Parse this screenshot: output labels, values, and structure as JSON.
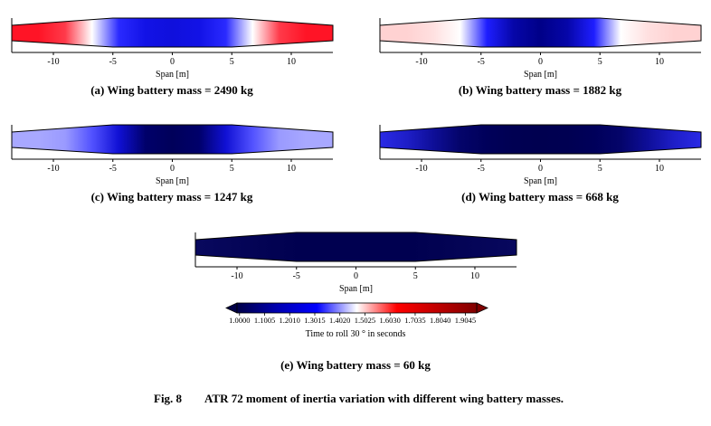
{
  "figure": {
    "panels": [
      {
        "caption": "(a) Wing battery mass = 2490 kg",
        "xlabel": "Span [m]",
        "xlim": [
          -13.5,
          13.5
        ],
        "xticks": [
          -10,
          -5,
          0,
          5,
          10
        ],
        "span_colors": [
          "#ff1426",
          "#ff1426",
          "#ff3a4a",
          "#ffffff",
          "#2a2aff",
          "#1212e6",
          "#1010dc",
          "#1212e6",
          "#2a2aff",
          "#ffffff",
          "#ff3a4a",
          "#ff1426",
          "#ff1426"
        ]
      },
      {
        "caption": "(b) Wing battery mass = 1882 kg",
        "xlabel": "Span [m]",
        "xlim": [
          -13.5,
          13.5
        ],
        "xticks": [
          -10,
          -5,
          0,
          5,
          10
        ],
        "span_colors": [
          "#ffd2d2",
          "#ffd2d2",
          "#ffe0e0",
          "#ffffff",
          "#1e1eff",
          "#0606a8",
          "#000088",
          "#0606a8",
          "#1e1eff",
          "#ffffff",
          "#ffe0e0",
          "#ffd2d2",
          "#ffd2d2"
        ]
      },
      {
        "caption": "(c) Wing battery mass = 1247 kg",
        "xlabel": "Span [m]",
        "xlim": [
          -13.5,
          13.5
        ],
        "xticks": [
          -10,
          -5,
          0,
          5,
          10
        ],
        "span_colors": [
          "#a8a8ff",
          "#a8a8ff",
          "#9a9aff",
          "#5252ff",
          "#1010d4",
          "#00006a",
          "#00005a",
          "#00006a",
          "#1010d4",
          "#5252ff",
          "#9a9aff",
          "#a8a8ff",
          "#a8a8ff"
        ]
      },
      {
        "caption": "(d) Wing battery mass = 668 kg",
        "xlabel": "Span [m]",
        "xlim": [
          -13.5,
          13.5
        ],
        "xticks": [
          -10,
          -5,
          0,
          5,
          10
        ],
        "span_colors": [
          "#2a2ae6",
          "#1e1ec8",
          "#0e0e98",
          "#04046a",
          "#00005a",
          "#000052",
          "#000050",
          "#000052",
          "#00005a",
          "#04046a",
          "#0e0e98",
          "#1e1ec8",
          "#2a2ae6"
        ]
      },
      {
        "caption": "(e) Wing battery mass = 60 kg",
        "xlabel": "Span [m]",
        "xlim": [
          -13.5,
          13.5
        ],
        "xticks": [
          -10,
          -5,
          0,
          5,
          10
        ],
        "span_colors": [
          "#08085e",
          "#06065a",
          "#040456",
          "#020252",
          "#000050",
          "#000050",
          "#000050",
          "#000050",
          "#000050",
          "#020252",
          "#040456",
          "#06065a",
          "#08085e"
        ]
      }
    ],
    "colorbar": {
      "label": "Time to roll 30 °  in seconds",
      "clim": [
        0.99,
        1.95
      ],
      "colors": [
        "#000048",
        "#0000b0",
        "#0000ff",
        "#ffffff",
        "#ff0000",
        "#c00000",
        "#800000"
      ],
      "ticks": [
        {
          "value": 1.0,
          "label": "1.0000"
        },
        1.1005,
        {
          "value": 1.201,
          "label": "1.2010"
        },
        1.3015,
        {
          "value": 1.402,
          "label": "1.4020"
        },
        1.5025,
        {
          "value": 1.603,
          "label": "1.6030"
        },
        1.7035,
        {
          "value": 1.804,
          "label": "1.8040"
        },
        1.9045
      ]
    },
    "figure_label": "Fig. 8",
    "caption": "ATR 72 moment of inertia variation with different wing battery masses."
  }
}
